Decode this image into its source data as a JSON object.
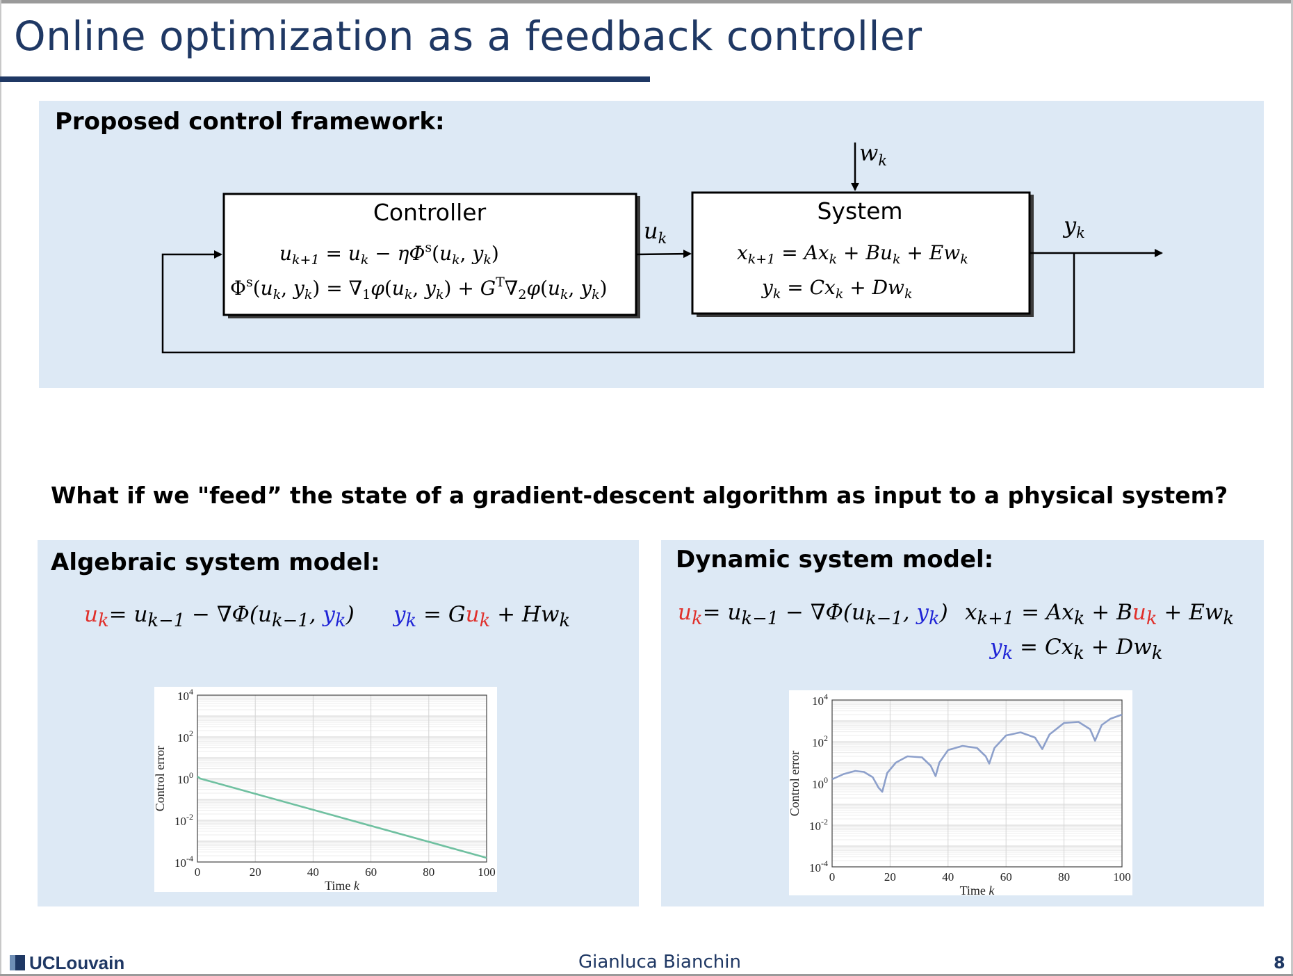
{
  "slide": {
    "title": "Online optimization as a feedback controller",
    "question": "What if we \"feed” the state of a gradient-descent algorithm as input to a physical system?"
  },
  "framework": {
    "heading": "Proposed control framework:",
    "controller_title": "Controller",
    "controller_eq1": "u_{k+1} = u_k − ηΦ^s(u_k, y_k)",
    "controller_eq2": "Φ^s(u_k, y_k) = ∇_1φ(u_k, y_k) + G^T∇_2φ(u_k, y_k)",
    "system_title": "System",
    "system_eq1": "x_{k+1} = Ax_k + Bu_k + Ew_k",
    "system_eq2": "y_k = Cx_k + Dw_k",
    "signal_u": "u_k",
    "signal_w": "w_k",
    "signal_y": "y_k"
  },
  "algebraic": {
    "heading": "Algebraic system model:",
    "update_eq": "u_k = u_{k−1} − ∇Φ(u_{k−1}, y_k)",
    "model_eq": "y_k = Gu_k + Hw_k"
  },
  "dynamic": {
    "heading": "Dynamic system model:",
    "update_eq": "u_k = u_{k−1} − ∇Φ(u_{k−1}, y_k)",
    "model_eq1": "x_{k+1} = Ax_k + Bu_k + Ew_k",
    "model_eq2": "y_k = Cx_k + Dw_k"
  },
  "footer": {
    "logo": "UCLouvain",
    "author": "Gianluca Bianchin",
    "page": "8"
  },
  "colors": {
    "title": "#1f3864",
    "panel": "#dde9f5",
    "u_highlight": "#e0302b",
    "y_highlight": "#1f24d6",
    "series_algebraic": "#6fc0a0",
    "series_dynamic": "#8da0cb"
  },
  "chart_data": [
    {
      "type": "line",
      "xlabel": "Time k",
      "ylabel": "Control error",
      "xlim": [
        0,
        100
      ],
      "ylim_log10": [
        -4,
        4
      ],
      "yscale": "log",
      "grid": true,
      "xticks": [
        "0",
        "20",
        "40",
        "60",
        "80",
        "100"
      ],
      "yticks": [
        "10^-4",
        "10^-2",
        "10^0",
        "10^2",
        "10^4"
      ],
      "series": [
        {
          "x": [
            0,
            1,
            100
          ],
          "log10_y": [
            0.1,
            0.0,
            -3.8
          ]
        }
      ]
    },
    {
      "type": "line",
      "xlabel": "Time k",
      "ylabel": "Control error",
      "xlim": [
        0,
        100
      ],
      "ylim_log10": [
        -4,
        4
      ],
      "yscale": "log",
      "grid": true,
      "xticks": [
        "0",
        "20",
        "40",
        "60",
        "80",
        "100"
      ],
      "yticks": [
        "10^-4",
        "10^-2",
        "10^0",
        "10^2",
        "10^4"
      ],
      "series": [
        {
          "x": [
            0,
            4,
            8,
            11,
            14,
            16,
            17.3,
            19,
            22,
            26,
            31,
            34,
            35.7,
            37,
            40,
            45,
            50,
            53,
            54.2,
            56,
            60,
            65,
            70,
            72.5,
            75,
            80,
            85,
            89,
            90.7,
            93,
            96,
            100
          ],
          "log10_y": [
            0.2,
            0.45,
            0.6,
            0.55,
            0.3,
            -0.2,
            -0.4,
            0.5,
            1.0,
            1.3,
            1.25,
            0.85,
            0.35,
            1.0,
            1.6,
            1.8,
            1.7,
            1.3,
            0.95,
            1.7,
            2.3,
            2.45,
            2.2,
            1.65,
            2.35,
            2.9,
            2.95,
            2.6,
            2.05,
            2.8,
            3.1,
            3.3
          ]
        }
      ]
    }
  ]
}
